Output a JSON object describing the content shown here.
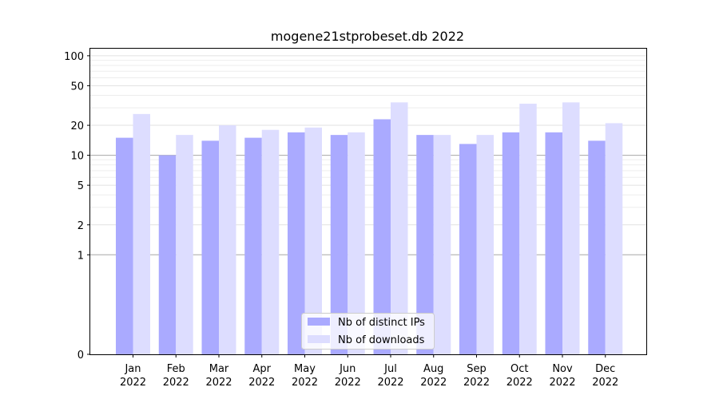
{
  "chart_data": {
    "type": "bar",
    "title": "mogene21stprobeset.db 2022",
    "xlabel": "",
    "ylabel": "",
    "y_scale": "symlog",
    "ylim": [
      0,
      120
    ],
    "y_ticks": [
      0,
      1,
      2,
      5,
      10,
      20,
      50,
      100
    ],
    "categories": [
      [
        "Jan",
        "2022"
      ],
      [
        "Feb",
        "2022"
      ],
      [
        "Mar",
        "2022"
      ],
      [
        "Apr",
        "2022"
      ],
      [
        "May",
        "2022"
      ],
      [
        "Jun",
        "2022"
      ],
      [
        "Jul",
        "2022"
      ],
      [
        "Aug",
        "2022"
      ],
      [
        "Sep",
        "2022"
      ],
      [
        "Oct",
        "2022"
      ],
      [
        "Nov",
        "2022"
      ],
      [
        "Dec",
        "2022"
      ]
    ],
    "series": [
      {
        "name": "Nb of distinct IPs",
        "color": "#aaaaff",
        "values": [
          15,
          10,
          14,
          15,
          17,
          16,
          23,
          16,
          13,
          17,
          17,
          14
        ]
      },
      {
        "name": "Nb of downloads",
        "color": "#ddddff",
        "values": [
          26,
          16,
          20,
          18,
          19,
          17,
          34,
          16,
          16,
          33,
          34,
          21
        ]
      }
    ],
    "grid": true,
    "legend_position": "bottom-center"
  }
}
